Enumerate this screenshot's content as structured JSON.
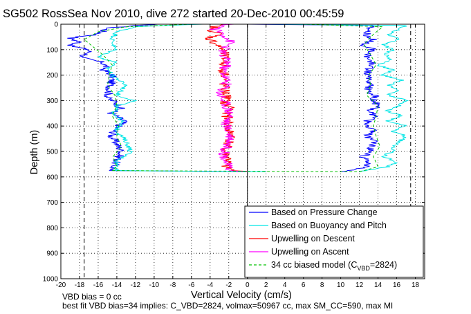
{
  "chart_data": {
    "type": "line",
    "title": "SG502 RossSea Nov 2010, dive 272 started 20-Dec-2010 00:45:59",
    "xlabel": "Vertical Velocity (cm/s)",
    "ylabel": "Depth (m)",
    "xlim": [
      -20,
      19
    ],
    "ylim": [
      1000,
      0
    ],
    "y_reversed": true,
    "grid": true,
    "legend_position": "bottom-right",
    "xticks": [
      "-20",
      "-18",
      "-16",
      "-14",
      "-12",
      "-10",
      "-8",
      "-6",
      "-4",
      "-2",
      "0",
      "2",
      "4",
      "6",
      "8",
      "10",
      "12",
      "14",
      "16",
      "18"
    ],
    "yticks": [
      "0",
      "100",
      "200",
      "300",
      "400",
      "500",
      "600",
      "700",
      "800",
      "900",
      "1000"
    ],
    "reference_lines": [
      {
        "axis": "x",
        "value": -17.5,
        "style": "dashed"
      },
      {
        "axis": "x",
        "value": 17.5,
        "style": "dashed"
      },
      {
        "axis": "x",
        "value": 0,
        "style": "solid"
      }
    ],
    "series": [
      {
        "name": "Based on Pressure Change",
        "color": "#0000ff",
        "segments": [
          {
            "y": [
              0,
              15,
              40,
              55,
              70,
              85,
              100,
              115,
              130,
              150,
              165,
              180,
              200,
              230,
              260,
              290,
              310,
              330,
              350,
              380,
              410,
              440,
              470,
              500,
              530,
              550,
              575
            ],
            "x": [
              -10,
              -15,
              -16,
              -19,
              -18,
              -19,
              -17,
              -17,
              -18,
              -15.5,
              -15.2,
              -15.4,
              -14.5,
              -14.6,
              -14.8,
              -15,
              -14,
              -13.6,
              -14.6,
              -13.2,
              -14.1,
              -14.6,
              -14,
              -13.5,
              -13.9,
              -14.2,
              -14.5
            ]
          },
          {
            "y": [
              575,
              580
            ],
            "x": [
              -14.5,
              0
            ]
          },
          {
            "y": [
              580,
              570,
              550,
              520,
              500,
              480,
              460,
              440,
              420,
              400,
              380,
              360,
              340,
              320,
              300,
              280,
              260,
              240,
              220,
              200,
              180,
              160,
              140,
              120,
              100,
              80,
              60,
              40,
              20,
              5,
              0
            ],
            "x": [
              10,
              12,
              13,
              12.5,
              13,
              13.2,
              13.6,
              12.8,
              13.5,
              13.1,
              12.9,
              13.6,
              13.2,
              14,
              13.5,
              13.8,
              12.8,
              13.3,
              13,
              12.8,
              12.9,
              13.4,
              13.2,
              12.8,
              13.5,
              12.5,
              13.4,
              12.8,
              13,
              13.5,
              0
            ]
          }
        ]
      },
      {
        "name": "Based on Buoyancy and Pitch",
        "color": "#00e5e5",
        "segments": [
          {
            "y": [
              0,
              10,
              30,
              60,
              100,
              130,
              150,
              170,
              200,
              240,
              280,
              300,
              320,
              350,
              380,
              420,
              460,
              500,
              540,
              575
            ],
            "x": [
              -5,
              -12,
              -14,
              -14.5,
              -14.2,
              -16,
              -14,
              -15,
              -14.5,
              -13,
              -14,
              -12,
              -14,
              -14.3,
              -13.5,
              -14,
              -13,
              -12.5,
              -14,
              -14
            ]
          },
          {
            "y": [
              575,
              580
            ],
            "x": [
              -14,
              2
            ]
          },
          {
            "y": [
              580,
              560,
              540,
              520,
              500,
              470,
              440,
              420,
              400,
              380,
              360,
              340,
              320,
              300,
              280,
              260,
              240,
              220,
              200,
              180,
              160,
              140,
              120,
              100,
              80,
              60,
              40,
              20,
              5,
              0
            ],
            "x": [
              12,
              15,
              16,
              14.5,
              15.5,
              16,
              17,
              15.5,
              17,
              15,
              16.5,
              15,
              16.2,
              17.2,
              15,
              16,
              15.2,
              16.5,
              14.5,
              15.5,
              14,
              15.5,
              14.8,
              15.6,
              14.6,
              16.2,
              15.2,
              16.1,
              17,
              2
            ]
          }
        ]
      },
      {
        "name": "Upwelling on Descent",
        "color": "#ff0000",
        "segments": [
          {
            "y": [
              0,
              20,
              40,
              55,
              70,
              100,
              130,
              150,
              180,
              200,
              230,
              260,
              290,
              310,
              330,
              350,
              380,
              410,
              440,
              470,
              500,
              530,
              560,
              575,
              578
            ],
            "x": [
              -3,
              -4,
              -3,
              -4.2,
              -3.6,
              -2.6,
              -2.5,
              -2.4,
              -2.7,
              -2.3,
              -2.6,
              -2.4,
              -2.2,
              -2.5,
              -1.6,
              -2.3,
              -2,
              -2.2,
              -1.6,
              -2.1,
              -2.5,
              -2,
              -2.4,
              -1.5,
              0
            ]
          }
        ]
      },
      {
        "name": "Upwelling on Ascent",
        "color": "#ff00ff",
        "segments": [
          {
            "y": [
              0,
              20,
              40,
              70,
              100,
              120,
              150,
              180,
              210,
              240,
              270,
              300,
              330,
              360,
              390,
              420,
              450,
              480,
              510,
              540,
              570,
              578
            ],
            "x": [
              -2,
              -3.5,
              -2.5,
              -1.8,
              -2.5,
              -2.8,
              -2,
              -2.6,
              -2.3,
              -2.2,
              -3,
              -2.5,
              -2.1,
              -1.8,
              -2.4,
              -2,
              -1.7,
              -2.2,
              -2.5,
              -2.3,
              -2,
              -1
            ]
          }
        ]
      },
      {
        "name": "34 cc biased model (C_VBD=2824)",
        "color": "#00c000",
        "style": "dashed",
        "segments": [
          {
            "y": [
              0,
              10,
              30,
              60,
              90,
              120,
              160,
              200,
              240,
              280,
              320,
              360,
              400,
              440,
              480,
              520,
              560,
              575
            ],
            "x": [
              -6,
              -13,
              -16,
              -17.5,
              -16.5,
              -15.5,
              -14.5,
              -14.8,
              -15,
              -14.2,
              -14,
              -14.5,
              -13.8,
              -14,
              -13.5,
              -14.4,
              -14,
              -14.5
            ]
          },
          {
            "y": [
              575,
              580
            ],
            "x": [
              -14.5,
              12
            ]
          },
          {
            "y": [
              580,
              560,
              520,
              480,
              440,
              400,
              360,
              320,
              280,
              240,
              200,
              160,
              120,
              80,
              40,
              10,
              0
            ],
            "x": [
              12,
              14,
              13.5,
              14.2,
              13.8,
              13.5,
              13.8,
              14,
              12.8,
              13.2,
              13,
              13.8,
              13.2,
              12.5,
              13.5,
              14.5,
              6
            ]
          }
        ]
      }
    ],
    "legend": [
      {
        "label": "Based on Pressure Change",
        "color": "#0000ff",
        "style": "solid"
      },
      {
        "label": "Based on Buoyancy and Pitch",
        "color": "#00e5e5",
        "style": "solid"
      },
      {
        "label": "Upwelling on Descent",
        "color": "#ff0000",
        "style": "solid"
      },
      {
        "label": "Upwelling on Ascent",
        "color": "#ff00ff",
        "style": "solid"
      },
      {
        "label": "34 cc biased model (C",
        "sub": "VBD",
        "suffix": "=2824)",
        "color": "#00c000",
        "style": "dashed"
      }
    ],
    "footnote_line1": "VBD bias = 0 cc",
    "footnote_line2": "best fit VBD bias=34 implies: C_VBD=2824, volmax=50967 cc, max SM_CC=590, max MI"
  }
}
